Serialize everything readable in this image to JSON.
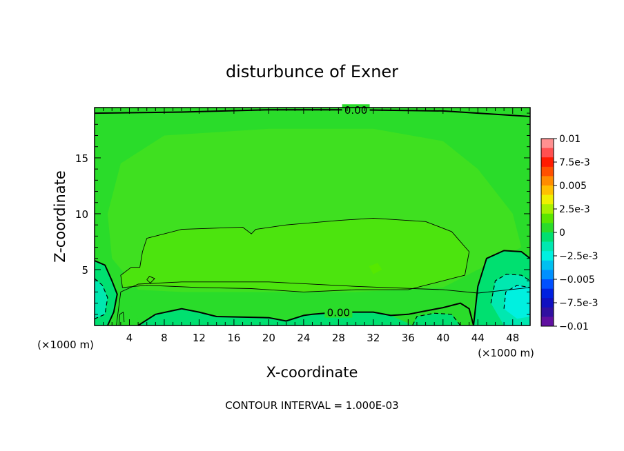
{
  "chart_data": {
    "type": "heatmap",
    "title": "disturbunce of Exner",
    "xlabel": "X-coordinate",
    "ylabel": "Z-coordinate",
    "x_unit_left": "(×1000 m)",
    "x_unit_right": "(×1000 m)",
    "footer": "CONTOUR INTERVAL = 1.000E-03",
    "xlim": [
      0,
      50
    ],
    "ylim": [
      0,
      19.5
    ],
    "x_ticks": [
      4,
      8,
      12,
      16,
      20,
      24,
      28,
      32,
      36,
      40,
      44,
      48
    ],
    "y_ticks": [
      5,
      10,
      15
    ],
    "colorbar": {
      "labels": [
        "0.01",
        "7.5e-3",
        "0.005",
        "2.5e-3",
        "0",
        "−2.5e-3",
        "−0.005",
        "−7.5e-3",
        "−0.01"
      ],
      "bands": [
        {
          "lo": 0.009,
          "hi": 0.01,
          "color": "#ff9090"
        },
        {
          "lo": 0.008,
          "hi": 0.009,
          "color": "#ff5050"
        },
        {
          "lo": 0.007,
          "hi": 0.008,
          "color": "#ff1a00"
        },
        {
          "lo": 0.006,
          "hi": 0.007,
          "color": "#ff5000"
        },
        {
          "lo": 0.005,
          "hi": 0.006,
          "color": "#ff8c00"
        },
        {
          "lo": 0.004,
          "hi": 0.005,
          "color": "#ffc000"
        },
        {
          "lo": 0.003,
          "hi": 0.004,
          "color": "#f0f000"
        },
        {
          "lo": 0.002,
          "hi": 0.003,
          "color": "#a8f000"
        },
        {
          "lo": 0.001,
          "hi": 0.002,
          "color": "#5ae600"
        },
        {
          "lo": 0.0,
          "hi": 0.001,
          "color": "#2adc2a"
        },
        {
          "lo": -0.001,
          "hi": 0.0,
          "color": "#00e070"
        },
        {
          "lo": -0.002,
          "hi": -0.001,
          "color": "#00e8b0"
        },
        {
          "lo": -0.003,
          "hi": -0.002,
          "color": "#00f0e0"
        },
        {
          "lo": -0.004,
          "hi": -0.003,
          "color": "#00c0f0"
        },
        {
          "lo": -0.005,
          "hi": -0.004,
          "color": "#0090ff"
        },
        {
          "lo": -0.006,
          "hi": -0.005,
          "color": "#0050ff"
        },
        {
          "lo": -0.007,
          "hi": -0.006,
          "color": "#0020e0"
        },
        {
          "lo": -0.008,
          "hi": -0.007,
          "color": "#1010c0"
        },
        {
          "lo": -0.009,
          "hi": -0.008,
          "color": "#3010a0"
        },
        {
          "lo": -0.01,
          "hi": -0.009,
          "color": "#6010a0"
        }
      ]
    },
    "regions": [
      {
        "level": 0.0005,
        "color": "#2adc2a",
        "points": [
          [
            0,
            19.3
          ],
          [
            20,
            19.3
          ],
          [
            50,
            19.3
          ],
          [
            50,
            3.5
          ],
          [
            44,
            2.8
          ],
          [
            40,
            2.2
          ],
          [
            30,
            2
          ],
          [
            20,
            1.9
          ],
          [
            10,
            1.6
          ],
          [
            5,
            0.6
          ],
          [
            3.5,
            2.8
          ],
          [
            2,
            4.5
          ],
          [
            0,
            4.5
          ]
        ]
      },
      {
        "level": 0.0008,
        "color": "#3fe020",
        "points": [
          [
            3,
            14.5
          ],
          [
            8,
            17
          ],
          [
            20,
            17.6
          ],
          [
            32,
            17.6
          ],
          [
            40,
            16.5
          ],
          [
            44,
            14
          ],
          [
            48,
            10
          ],
          [
            49,
            7
          ],
          [
            44,
            5
          ],
          [
            40,
            3.4
          ],
          [
            30,
            3
          ],
          [
            20,
            3
          ],
          [
            10,
            3
          ],
          [
            5,
            3.2
          ],
          [
            2,
            6
          ],
          [
            1.5,
            10
          ]
        ]
      },
      {
        "level": 0.0012,
        "color": "#4ce40e",
        "points": [
          [
            6,
            7.8
          ],
          [
            10,
            8.6
          ],
          [
            17,
            8.8
          ],
          [
            18,
            8.2
          ],
          [
            18.5,
            8.6
          ],
          [
            22,
            9
          ],
          [
            28,
            9.4
          ],
          [
            32,
            9.6
          ],
          [
            38,
            9.3
          ],
          [
            41,
            8.4
          ],
          [
            43,
            6.6
          ],
          [
            42.5,
            4.5
          ],
          [
            36,
            3.2
          ],
          [
            30,
            3.2
          ],
          [
            24,
            3
          ],
          [
            18,
            3.3
          ],
          [
            12,
            3.4
          ],
          [
            6,
            3.6
          ],
          [
            3.2,
            3.4
          ],
          [
            3,
            4.5
          ],
          [
            4.2,
            5.2
          ],
          [
            5.2,
            5.2
          ],
          [
            5.5,
            6.6
          ]
        ]
      },
      {
        "level": 0.0015,
        "color": "#56e800",
        "points": [
          [
            31.5,
            5.3
          ],
          [
            32.5,
            5.6
          ],
          [
            33,
            5
          ],
          [
            32,
            4.6
          ]
        ]
      },
      {
        "level": -0.0005,
        "color": "#00e070",
        "points": [
          [
            0,
            5.8
          ],
          [
            1.2,
            5.4
          ],
          [
            2,
            4
          ],
          [
            2.6,
            2.8
          ],
          [
            2.2,
            1.2
          ],
          [
            1.5,
            0
          ],
          [
            0,
            0
          ]
        ]
      },
      {
        "level": -0.0015,
        "color": "#00e8b0",
        "points": [
          [
            0,
            4.2
          ],
          [
            0.9,
            3.6
          ],
          [
            1.5,
            2.5
          ],
          [
            1.2,
            1
          ],
          [
            0,
            0.6
          ]
        ]
      },
      {
        "level": -0.0005,
        "color": "#00e070",
        "points": [
          [
            43.5,
            0
          ],
          [
            44,
            3.5
          ],
          [
            45,
            6
          ],
          [
            47,
            6.7
          ],
          [
            49,
            6.6
          ],
          [
            50,
            6
          ],
          [
            50,
            0
          ]
        ]
      },
      {
        "level": -0.0015,
        "color": "#00e8b0",
        "points": [
          [
            45.5,
            2
          ],
          [
            46,
            4
          ],
          [
            47.3,
            4.6
          ],
          [
            49,
            4.5
          ],
          [
            50,
            4
          ],
          [
            50,
            0
          ],
          [
            47,
            0
          ]
        ]
      },
      {
        "level": -0.0025,
        "color": "#00f0e0",
        "points": [
          [
            47,
            1.5
          ],
          [
            47.2,
            3
          ],
          [
            48.5,
            3.6
          ],
          [
            50,
            3.4
          ],
          [
            50,
            0.8
          ],
          [
            48.5,
            0.6
          ]
        ]
      },
      {
        "level": -0.0003,
        "color": "#00e070",
        "points": [
          [
            36.5,
            0
          ],
          [
            37,
            0.8
          ],
          [
            39,
            1.1
          ],
          [
            41,
            1
          ],
          [
            42,
            0
          ],
          [
            39,
            0
          ]
        ]
      },
      {
        "level": -0.0003,
        "color": "#00e070",
        "points": [
          [
            5,
            0
          ],
          [
            7,
            1
          ],
          [
            10,
            1.5
          ],
          [
            12,
            1.2
          ],
          [
            14,
            0.8
          ],
          [
            20,
            0.7
          ],
          [
            22,
            0.4
          ],
          [
            24,
            0.9
          ],
          [
            25,
            1
          ],
          [
            28,
            1.2
          ],
          [
            32,
            1.2
          ],
          [
            34,
            0.9
          ],
          [
            36,
            0.2
          ],
          [
            36.5,
            0
          ],
          [
            20,
            0
          ]
        ]
      }
    ],
    "contours": [
      {
        "label": "0.00",
        "style": "thick",
        "points": [
          [
            0,
            19.0
          ],
          [
            10,
            19.1
          ],
          [
            20,
            19.3
          ],
          [
            30,
            19.3
          ],
          [
            40,
            19.2
          ],
          [
            50,
            18.7
          ]
        ]
      },
      {
        "label": "",
        "style": "thin",
        "points": [
          [
            6,
            7.8
          ],
          [
            10,
            8.6
          ],
          [
            17,
            8.8
          ],
          [
            18,
            8.2
          ],
          [
            18.5,
            8.6
          ],
          [
            22,
            9
          ],
          [
            28,
            9.4
          ],
          [
            32,
            9.6
          ],
          [
            38,
            9.3
          ],
          [
            41,
            8.4
          ],
          [
            43,
            6.6
          ],
          [
            42.5,
            4.5
          ],
          [
            36,
            3.2
          ],
          [
            30,
            3.2
          ],
          [
            24,
            3
          ],
          [
            18,
            3.3
          ],
          [
            12,
            3.4
          ],
          [
            6,
            3.6
          ],
          [
            3.2,
            3.4
          ],
          [
            3,
            4.5
          ],
          [
            4.2,
            5.2
          ],
          [
            5.2,
            5.2
          ],
          [
            5.5,
            6.6
          ],
          [
            6,
            7.8
          ]
        ]
      },
      {
        "label": "",
        "style": "thin",
        "points": [
          [
            2.5,
            0
          ],
          [
            3,
            3
          ],
          [
            5,
            3.7
          ],
          [
            10,
            3.9
          ],
          [
            20,
            3.9
          ],
          [
            30,
            3.5
          ],
          [
            40,
            3.2
          ],
          [
            44,
            2.9
          ],
          [
            50,
            3.4
          ]
        ]
      },
      {
        "label": "0.00",
        "style": "thick",
        "points": [
          [
            5,
            0
          ],
          [
            7,
            1
          ],
          [
            10,
            1.5
          ],
          [
            12,
            1.2
          ],
          [
            14,
            0.8
          ],
          [
            20,
            0.7
          ],
          [
            22,
            0.4
          ],
          [
            24,
            0.9
          ],
          [
            25,
            1
          ],
          [
            28,
            1.2
          ],
          [
            32,
            1.2
          ],
          [
            34,
            0.9
          ],
          [
            36,
            1
          ],
          [
            38,
            1.3
          ],
          [
            40,
            1.6
          ],
          [
            42,
            2
          ],
          [
            43,
            1.5
          ],
          [
            43.5,
            0
          ]
        ]
      },
      {
        "label": "",
        "style": "thick",
        "points": [
          [
            0,
            5.8
          ],
          [
            1.2,
            5.4
          ],
          [
            2,
            4
          ],
          [
            2.6,
            2.8
          ],
          [
            2.2,
            1.2
          ],
          [
            1.5,
            0
          ]
        ]
      },
      {
        "label": "",
        "style": "dashed",
        "points": [
          [
            0,
            4.2
          ],
          [
            0.9,
            3.6
          ],
          [
            1.5,
            2.5
          ],
          [
            1.2,
            1
          ],
          [
            0,
            0.6
          ]
        ]
      },
      {
        "label": "",
        "style": "thick",
        "points": [
          [
            43.5,
            0
          ],
          [
            44,
            3.5
          ],
          [
            45,
            6
          ],
          [
            47,
            6.7
          ],
          [
            49,
            6.6
          ],
          [
            50,
            6
          ]
        ]
      },
      {
        "label": "",
        "style": "dashed",
        "points": [
          [
            45.5,
            2
          ],
          [
            46,
            4
          ],
          [
            47.3,
            4.6
          ],
          [
            49,
            4.5
          ],
          [
            50,
            4
          ]
        ]
      },
      {
        "label": "",
        "style": "dashed",
        "points": [
          [
            47,
            1.5
          ],
          [
            47.2,
            3
          ],
          [
            48.5,
            3.6
          ],
          [
            50,
            3.4
          ]
        ]
      },
      {
        "label": "",
        "style": "dashed",
        "points": [
          [
            36.5,
            0
          ],
          [
            37,
            0.8
          ],
          [
            39,
            1.1
          ],
          [
            41,
            1
          ],
          [
            42,
            0
          ]
        ]
      },
      {
        "label": "",
        "style": "thin",
        "points": [
          [
            6,
            4.1
          ],
          [
            6.3,
            4.4
          ],
          [
            6.9,
            4.2
          ],
          [
            6.4,
            3.8
          ],
          [
            6,
            4.1
          ]
        ]
      },
      {
        "label": "",
        "style": "thin",
        "points": [
          [
            2.8,
            0
          ],
          [
            2.9,
            1
          ],
          [
            3.3,
            1.2
          ],
          [
            3.4,
            0.3
          ]
        ]
      }
    ]
  }
}
